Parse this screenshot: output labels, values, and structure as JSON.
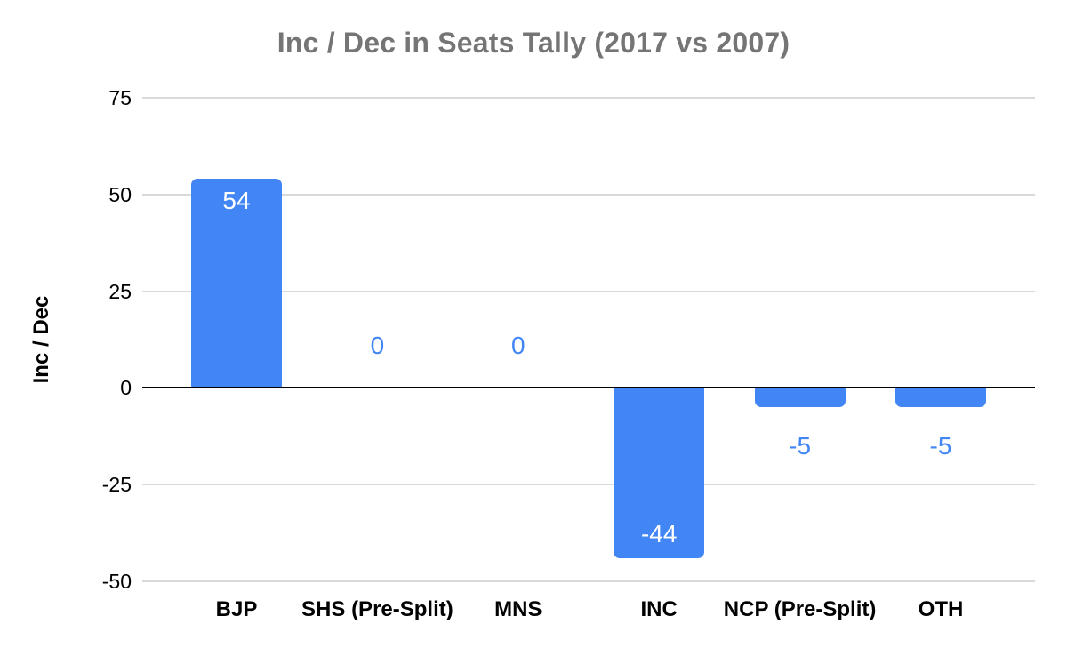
{
  "chart_data": {
    "type": "bar",
    "title": "Inc / Dec in Seats Tally (2017 vs 2007)",
    "xlabel": "",
    "ylabel": "Inc / Dec",
    "categories": [
      "BJP",
      "SHS (Pre-Split)",
      "MNS",
      "INC",
      "NCP (Pre-Split)",
      "OTH"
    ],
    "values": [
      54,
      0,
      0,
      -44,
      -5,
      -5
    ],
    "data_labels": [
      "54",
      "0",
      "0",
      "-44",
      "-5",
      "-5"
    ],
    "yticks": [
      75,
      50,
      25,
      0,
      -25,
      -50
    ],
    "ylim": [
      -50,
      75
    ],
    "grid": true,
    "legend": "none",
    "colors": {
      "bar": "#4285f4",
      "label_inside": "#ffffff",
      "label_outside": "#4285f4",
      "gridline": "#d9d9d9",
      "zero_axis": "#000000",
      "title": "#757575",
      "tick_label": "#000000",
      "category_label": "#000000",
      "y_axis_title": "#000000",
      "background": "#ffffff"
    }
  }
}
